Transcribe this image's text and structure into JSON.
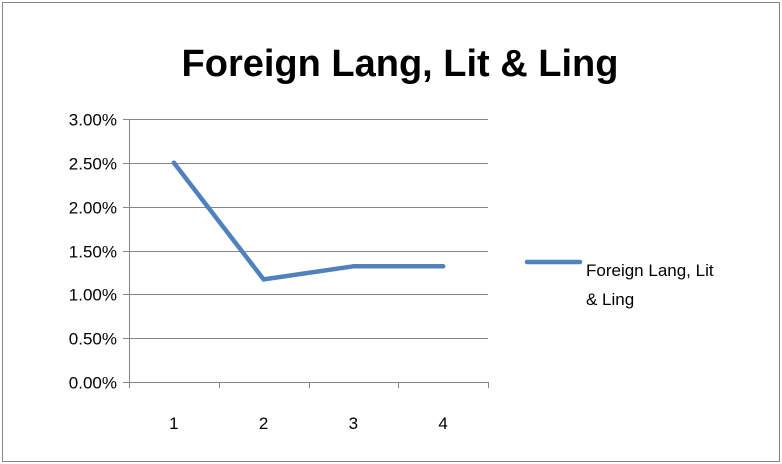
{
  "chart_data": {
    "type": "line",
    "title": "Foreign Lang, Lit & Ling",
    "x": [
      "1",
      "2",
      "3",
      "4"
    ],
    "series": [
      {
        "name": "Foreign Lang, Lit & Ling",
        "values": [
          2.5,
          1.17,
          1.32,
          1.32
        ],
        "color": "#4f81bd"
      }
    ],
    "yticks": [
      "0.00%",
      "0.50%",
      "1.00%",
      "1.50%",
      "2.00%",
      "2.50%",
      "3.00%"
    ],
    "ylim": [
      0,
      3
    ],
    "y_unit": "percent",
    "grid": "horizontal",
    "legend_position": "right",
    "legend_lines": [
      "Foreign Lang, Lit",
      "& Ling"
    ],
    "xlabel": "",
    "ylabel": ""
  }
}
